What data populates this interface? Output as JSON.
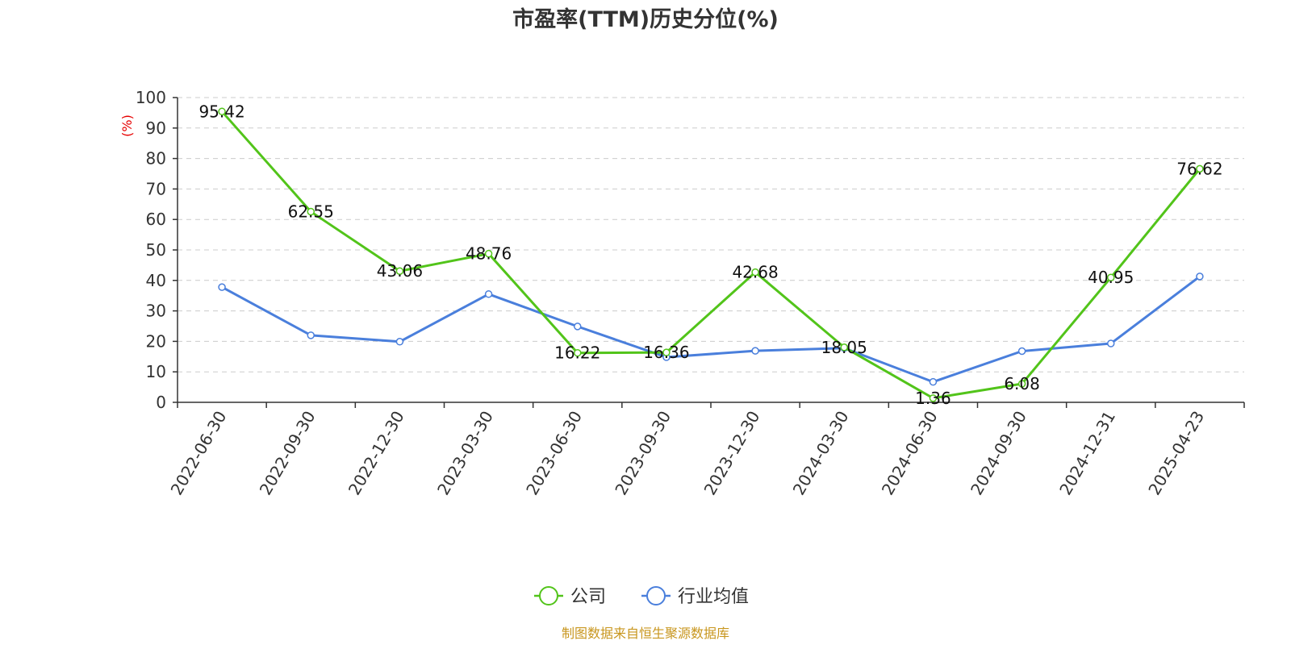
{
  "chart_data": {
    "type": "line",
    "title": "市盈率(TTM)历史分位(%)",
    "ylabel": "(%)",
    "xlabel": "",
    "ylim": [
      0,
      100
    ],
    "yticks": [
      0,
      10,
      20,
      30,
      40,
      50,
      60,
      70,
      80,
      90,
      100
    ],
    "grid": "horizontal-dashed",
    "legend_position": "bottom-center",
    "categories": [
      "2022-06-30",
      "2022-09-30",
      "2022-12-30",
      "2023-03-30",
      "2023-06-30",
      "2023-09-30",
      "2023-12-30",
      "2024-03-30",
      "2024-06-30",
      "2024-09-30",
      "2024-12-31",
      "2025-04-23"
    ],
    "series": [
      {
        "name": "公司",
        "color": "#52c41a",
        "values": [
          95.42,
          62.55,
          43.06,
          48.76,
          16.22,
          16.36,
          42.68,
          18.05,
          1.36,
          6.08,
          40.95,
          76.62
        ],
        "labels": [
          "95.42",
          "62.55",
          "43.06",
          "48.76",
          "16.22",
          "16.36",
          "42.68",
          "18.05",
          "1.36",
          "6.08",
          "40.95",
          "76.62"
        ]
      },
      {
        "name": "行业均值",
        "color": "#4a7fdc",
        "values": [
          37.8,
          22.0,
          19.9,
          35.5,
          24.9,
          14.8,
          16.9,
          17.8,
          6.7,
          16.8,
          19.3,
          41.3
        ]
      }
    ],
    "source": "制图数据来自恒生聚源数据库",
    "colors": {
      "axis": "#333333",
      "grid": "#cccccc",
      "ylabel": "#e60000",
      "source": "#c8961e"
    }
  }
}
